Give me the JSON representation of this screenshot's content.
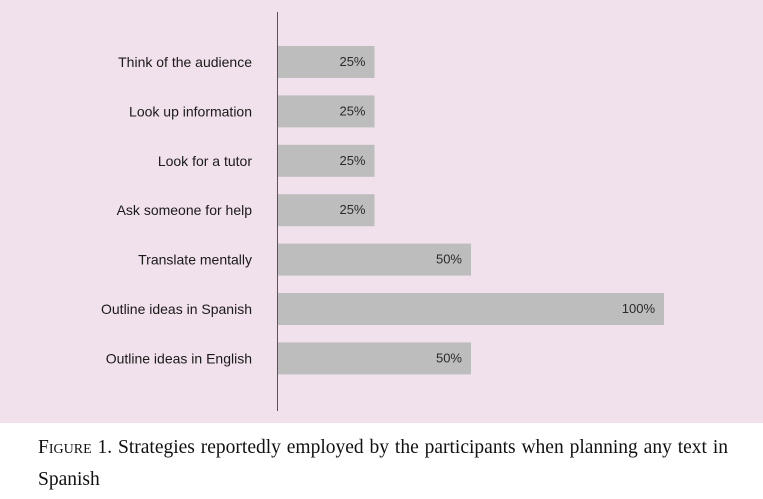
{
  "chart_data": {
    "type": "bar",
    "orientation": "horizontal",
    "categories": [
      "Think of the audience",
      "Look up information",
      "Look for a tutor",
      "Ask someone for help",
      "Translate mentally",
      "Outline ideas in Spanish",
      "Outline ideas in English"
    ],
    "values": [
      25,
      25,
      25,
      25,
      50,
      100,
      50
    ],
    "value_labels": [
      "25%",
      "25%",
      "25%",
      "25%",
      "50%",
      "100%",
      "50%"
    ],
    "xlim": [
      0,
      100
    ],
    "grid": false,
    "bar_color": "#bdbdbd",
    "background_color": "#f1e1ec"
  },
  "caption": {
    "figure_label": "Figure",
    "text": " 1. Strategies reportedly employed by the participants when planning any text in Spanish"
  }
}
